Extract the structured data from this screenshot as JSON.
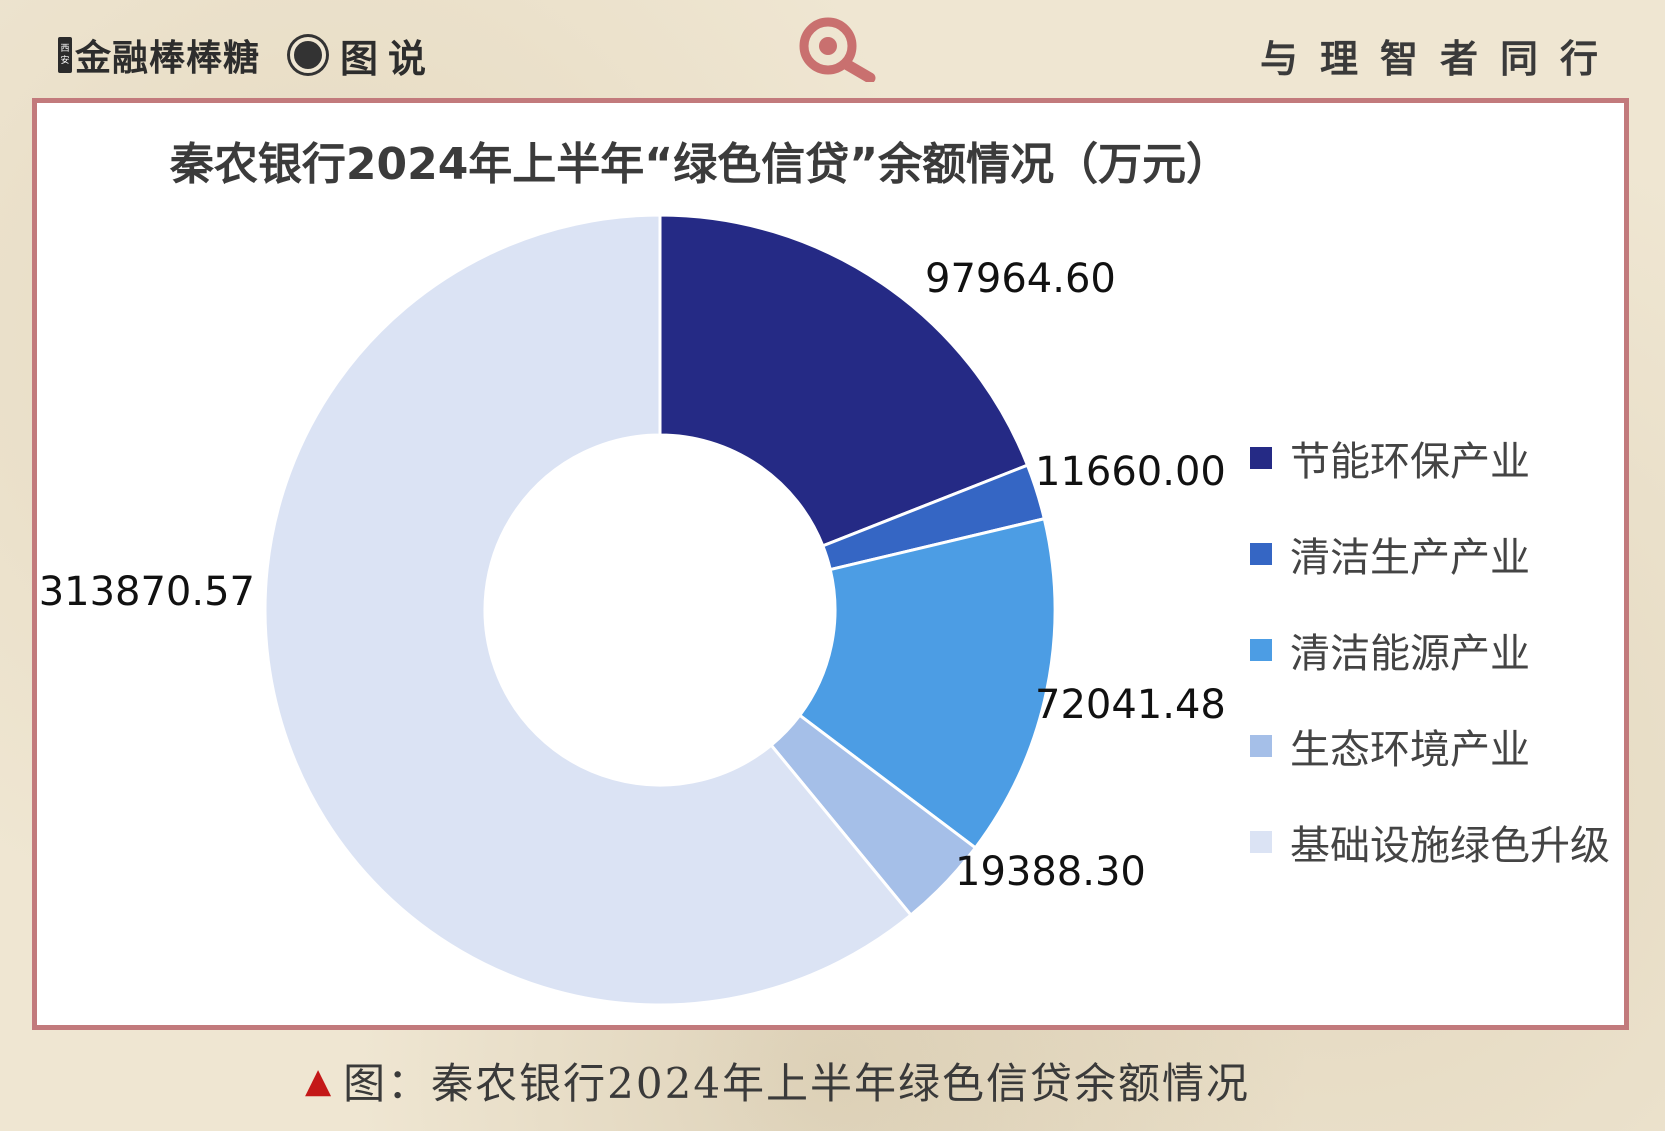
{
  "header": {
    "brand_tag_top": "西",
    "brand_tag_bottom": "安",
    "brand_name": "金融棒棒糖",
    "section_label": "图说",
    "motto": "与理智者同行"
  },
  "caption": {
    "marker": "▲",
    "text": "图：秦农银行2024年上半年绿色信贷余额情况"
  },
  "chart_data": {
    "type": "pie",
    "donut": true,
    "title": "秦农银行2024年上半年“绿色信贷”余额情况（万元）",
    "categories": [
      "节能环保产业",
      "清洁生产产业",
      "清洁能源产业",
      "生态环境产业",
      "基础设施绿色升级"
    ],
    "values": [
      97964.6,
      11660.0,
      72041.48,
      19388.3,
      313870.57
    ],
    "labels": [
      "97964.60",
      "11660.00",
      "72041.48",
      "19388.30",
      "313870.57"
    ],
    "colors": [
      "#252a85",
      "#3566c4",
      "#4c9de4",
      "#a5bfe8",
      "#dbe3f4"
    ],
    "legend_position": "right"
  }
}
